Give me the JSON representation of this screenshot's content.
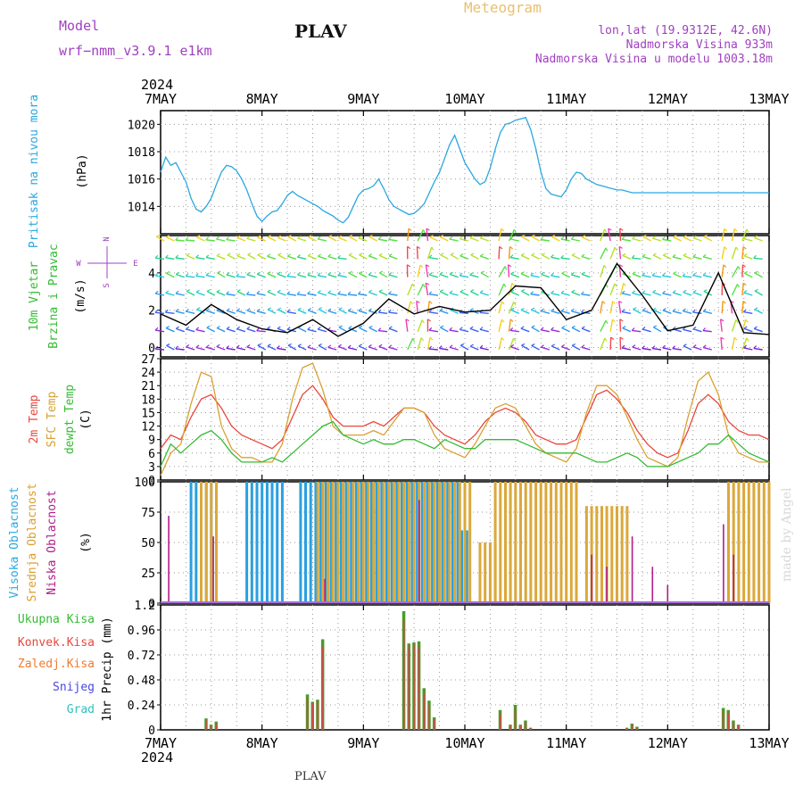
{
  "header": {
    "model_label": "Model",
    "model_name": "wrf−nmm_v3.9.1  e1km",
    "station_title": "PLAV",
    "product_title": "Meteogram",
    "coords": "lon,lat (19.9312E, 42.6N)",
    "elevation": "Nadmorska Visina 933m",
    "model_elevation": "Nadmorska Visina u modelu 1003.18m",
    "footer_station": "PLAV",
    "credit": "made by Angel"
  },
  "colors": {
    "pressure": "#29a8e0",
    "temp2m": "#e8473c",
    "sfc_temp": "#d9a032",
    "dewpt": "#33bb33",
    "cloud_high": "#2aa0e0",
    "cloud_mid": "#dba83a",
    "cloud_low": "#b01d8a",
    "precip_total": "#4c9a2a",
    "precip_conv": "#d24a4a",
    "model_purple": "#a040c0",
    "meteogram_gold": "#e8c070",
    "legend_snow": "#4848e0",
    "legend_hail": "#30c0c0",
    "legend_frozen": "#f07a30",
    "credit_color": "#d8d8d8"
  },
  "chart_data": [
    {
      "type": "line",
      "panel": "pressure",
      "ylabels": [
        "Pritisak na nivou mora",
        "(hPa)"
      ],
      "ylim": [
        1012,
        1021
      ],
      "yticks": [
        "1014",
        "1016",
        "1018",
        "1020"
      ],
      "grid": true,
      "x_days": [
        0,
        0.05,
        0.1,
        0.15,
        0.2,
        0.25,
        0.3,
        0.35,
        0.4,
        0.45,
        0.5,
        0.55,
        0.6,
        0.65,
        0.7,
        0.75,
        0.8,
        0.85,
        0.9,
        0.95,
        1.0,
        1.05,
        1.1,
        1.15,
        1.2,
        1.25,
        1.3,
        1.35,
        1.4,
        1.45,
        1.5,
        1.55,
        1.6,
        1.65,
        1.7,
        1.75,
        1.8,
        1.85,
        1.9,
        1.95,
        2.0,
        2.05,
        2.1,
        2.15,
        2.2,
        2.25,
        2.3,
        2.35,
        2.4,
        2.45,
        2.5,
        2.55,
        2.6,
        2.65,
        2.7,
        2.75,
        2.8,
        2.85,
        2.9,
        2.95,
        3.0,
        3.05,
        3.1,
        3.15,
        3.2,
        3.25,
        3.3,
        3.35,
        3.4,
        3.45,
        3.5,
        3.55,
        3.6,
        3.65,
        3.7,
        3.75,
        3.8,
        3.85,
        3.9,
        3.95,
        4.0,
        4.05,
        4.1,
        4.15,
        4.2,
        4.25,
        4.3,
        4.35,
        4.4,
        4.45,
        4.5,
        4.55,
        4.6,
        4.65,
        4.7,
        4.75,
        4.8,
        4.85,
        4.9,
        4.95,
        5.0,
        5.05,
        5.1,
        5.15,
        5.2,
        5.25,
        5.3,
        5.35,
        5.4,
        5.45,
        5.5,
        5.55,
        5.6,
        5.65,
        5.7,
        5.75,
        5.8,
        5.85,
        5.9,
        5.95,
        6.0
      ],
      "series": [
        {
          "color_key": "pressure",
          "values": [
            1016.5,
            1017.6,
            1017.0,
            1017.2,
            1016.5,
            1015.8,
            1014.6,
            1013.8,
            1013.6,
            1014.0,
            1014.6,
            1015.6,
            1016.5,
            1017.0,
            1016.9,
            1016.6,
            1016.0,
            1015.2,
            1014.2,
            1013.3,
            1012.9,
            1013.3,
            1013.6,
            1013.7,
            1014.2,
            1014.8,
            1015.1,
            1014.8,
            1014.6,
            1014.4,
            1014.2,
            1014.0,
            1013.7,
            1013.5,
            1013.3,
            1013.0,
            1012.8,
            1013.2,
            1014.0,
            1014.8,
            1015.2,
            1015.3,
            1015.5,
            1016.0,
            1015.3,
            1014.5,
            1014.0,
            1013.8,
            1013.6,
            1013.4,
            1013.5,
            1013.8,
            1014.2,
            1015.0,
            1015.8,
            1016.5,
            1017.5,
            1018.5,
            1019.2,
            1018.2,
            1017.2,
            1016.6,
            1016.0,
            1015.6,
            1015.8,
            1016.8,
            1018.2,
            1019.4,
            1020.0,
            1020.1,
            1020.3,
            1020.4,
            1020.5,
            1019.6,
            1018.2,
            1016.5,
            1015.3,
            1014.9,
            1014.8,
            1014.7,
            1015.2,
            1016.0,
            1016.5,
            1016.4,
            1016.0,
            1015.8,
            1015.6,
            1015.5,
            1015.4,
            1015.3,
            1015.2,
            1015.2,
            1015.1,
            1015.0,
            1015.0,
            1015.0,
            1015.0,
            1015.0,
            1015.0,
            1015.0,
            1015.0,
            1015.0,
            1015.0,
            1015.0,
            1015.0,
            1015.0,
            1015.0,
            1015.0,
            1015.0,
            1015.0,
            1015.0,
            1015.0,
            1015.0,
            1015.0,
            1015.0,
            1015.0,
            1015.0,
            1015.0,
            1015.0,
            1015.0,
            1015.0
          ]
        }
      ]
    },
    {
      "type": "line",
      "panel": "wind",
      "ylabels": [
        "10m Vjetar",
        "Brzina i Pravac",
        "(m/s)"
      ],
      "compass": [
        "N",
        "W",
        "E",
        "S"
      ],
      "ylim": [
        -0.5,
        6
      ],
      "yticks": [
        "0",
        "2",
        "4"
      ],
      "grid": true,
      "x_days": [
        0,
        0.25,
        0.5,
        0.75,
        1.0,
        1.25,
        1.5,
        1.75,
        2.0,
        2.25,
        2.5,
        2.75,
        3.0,
        3.25,
        3.5,
        3.75,
        4.0,
        4.25,
        4.5,
        4.75,
        5.0,
        5.25,
        5.5,
        5.75,
        6.0
      ],
      "series": [
        {
          "name": "speed",
          "values": [
            1.8,
            1.2,
            2.3,
            1.5,
            1.0,
            0.8,
            1.5,
            0.6,
            1.3,
            2.6,
            1.8,
            2.2,
            1.9,
            2.0,
            3.3,
            3.2,
            1.5,
            2.0,
            4.5,
            2.8,
            0.9,
            1.2,
            4.0,
            0.8,
            0.7
          ]
        }
      ]
    },
    {
      "type": "line",
      "panel": "temperature",
      "ylabels": [
        "2m Temp",
        "SFC Temp",
        "dewpt Temp",
        "(C)"
      ],
      "ylim": [
        0,
        27
      ],
      "yticks": [
        "0",
        "3",
        "6",
        "9",
        "12",
        "15",
        "18",
        "21",
        "24",
        "27"
      ],
      "grid": true,
      "x_days": [
        0,
        0.1,
        0.2,
        0.3,
        0.4,
        0.5,
        0.6,
        0.7,
        0.8,
        0.9,
        1.0,
        1.1,
        1.2,
        1.3,
        1.4,
        1.5,
        1.6,
        1.7,
        1.8,
        1.9,
        2.0,
        2.1,
        2.2,
        2.3,
        2.4,
        2.5,
        2.6,
        2.7,
        2.8,
        2.9,
        3.0,
        3.1,
        3.2,
        3.3,
        3.4,
        3.5,
        3.6,
        3.7,
        3.8,
        3.9,
        4.0,
        4.1,
        4.2,
        4.3,
        4.4,
        4.5,
        4.6,
        4.7,
        4.8,
        4.9,
        5.0,
        5.1,
        5.2,
        5.3,
        5.4,
        5.5,
        5.6,
        5.7,
        5.8,
        5.9,
        6.0
      ],
      "series": [
        {
          "color_key": "temp2m",
          "values": [
            7,
            10,
            9,
            14,
            18,
            19,
            16,
            12,
            10,
            9,
            8,
            7,
            9,
            14,
            19,
            21,
            18,
            14,
            12,
            12,
            12,
            13,
            12,
            14,
            16,
            16,
            15,
            12,
            10,
            9,
            8,
            10,
            13,
            15,
            16,
            15,
            13,
            10,
            9,
            8,
            8,
            9,
            14,
            19,
            20,
            18,
            15,
            11,
            8,
            6,
            5,
            6,
            11,
            17,
            19,
            17,
            13,
            11,
            10,
            10,
            9
          ]
        },
        {
          "color_key": "sfc_temp",
          "values": [
            1,
            6,
            8,
            17,
            24,
            23,
            12,
            7,
            5,
            5,
            4,
            4,
            8,
            18,
            25,
            26,
            20,
            12,
            10,
            10,
            10,
            11,
            10,
            13,
            16,
            16,
            15,
            10,
            7,
            6,
            5,
            8,
            12,
            16,
            17,
            16,
            12,
            8,
            6,
            5,
            4,
            7,
            15,
            21,
            21,
            19,
            14,
            9,
            5,
            4,
            3,
            5,
            14,
            22,
            24,
            19,
            10,
            6,
            5,
            4,
            4
          ]
        },
        {
          "color_key": "dewpt",
          "values": [
            3,
            8,
            6,
            8,
            10,
            11,
            9,
            6,
            4,
            4,
            4,
            5,
            4,
            6,
            8,
            10,
            12,
            13,
            10,
            9,
            8,
            9,
            8,
            8,
            9,
            9,
            8,
            7,
            9,
            8,
            7,
            7,
            9,
            9,
            9,
            9,
            8,
            7,
            6,
            6,
            6,
            6,
            5,
            4,
            4,
            5,
            6,
            5,
            3,
            3,
            3,
            4,
            5,
            6,
            8,
            8,
            10,
            8,
            6,
            5,
            4
          ]
        }
      ]
    },
    {
      "type": "bar",
      "panel": "cloud",
      "ylabels": [
        "Visoka Oblacnost",
        "Srednja Oblacnost",
        "Niska Oblacnost",
        "(%)"
      ],
      "ylim": [
        0,
        100
      ],
      "yticks": [
        "0",
        "25",
        "50",
        "75",
        "100"
      ],
      "grid": true,
      "series": [
        {
          "name": "Visoka Oblacnost",
          "color_key": "cloud_high",
          "bands": [
            [
              0.3,
              0.55,
              100
            ],
            [
              0.85,
              1.2,
              100
            ],
            [
              1.38,
              2.97,
              100
            ],
            [
              2.97,
              3.05,
              60
            ],
            [
              3.05,
              3.07,
              0
            ]
          ]
        },
        {
          "name": "Srednja Oblacnost",
          "color_key": "cloud_mid",
          "bands": [
            [
              0.4,
              0.55,
              100
            ],
            [
              1.55,
              3.05,
              100
            ],
            [
              3.15,
              3.3,
              50
            ],
            [
              3.3,
              4.1,
              100
            ],
            [
              4.2,
              4.6,
              80
            ],
            [
              5.6,
              6.0,
              100
            ]
          ]
        },
        {
          "name": "Niska Oblacnost",
          "color_key": "cloud_low",
          "spikes": [
            [
              0.08,
              72
            ],
            [
              0.52,
              55
            ],
            [
              1.62,
              20
            ],
            [
              2.55,
              85
            ],
            [
              4.25,
              40
            ],
            [
              4.4,
              30
            ],
            [
              4.65,
              55
            ],
            [
              4.85,
              30
            ],
            [
              5.0,
              15
            ],
            [
              5.55,
              65
            ],
            [
              5.65,
              40
            ]
          ]
        }
      ]
    },
    {
      "type": "bar",
      "panel": "precip",
      "ylabels": [
        "1hr Precip (mm)"
      ],
      "legend": [
        "Ukupna Kisa",
        "Konvek.Kisa",
        "Zaledj.Kisa",
        "Snijeg",
        "Grad"
      ],
      "ylim": [
        0,
        1.2
      ],
      "yticks": [
        "0",
        "0.24",
        "0.48",
        "0.72",
        "0.96",
        "1.2"
      ],
      "grid": true,
      "bars": [
        [
          0.45,
          0.11,
          0.09
        ],
        [
          0.5,
          0.05,
          0.04
        ],
        [
          0.55,
          0.08,
          0.06
        ],
        [
          1.45,
          0.34,
          0.3
        ],
        [
          1.5,
          0.27,
          0.25
        ],
        [
          1.55,
          0.29,
          0.27
        ],
        [
          1.6,
          0.87,
          0.8
        ],
        [
          2.4,
          1.14,
          1.05
        ],
        [
          2.45,
          0.83,
          0.8
        ],
        [
          2.5,
          0.84,
          0.82
        ],
        [
          2.55,
          0.85,
          0.8
        ],
        [
          2.6,
          0.4,
          0.35
        ],
        [
          2.65,
          0.28,
          0.24
        ],
        [
          2.7,
          0.12,
          0.1
        ],
        [
          3.35,
          0.19,
          0.15
        ],
        [
          3.45,
          0.05,
          0.04
        ],
        [
          3.5,
          0.24,
          0.2
        ],
        [
          3.55,
          0.05,
          0.04
        ],
        [
          3.6,
          0.09,
          0.07
        ],
        [
          3.65,
          0.02,
          0.02
        ],
        [
          4.6,
          0.02,
          0.02
        ],
        [
          4.65,
          0.06,
          0.05
        ],
        [
          4.7,
          0.03,
          0.02
        ],
        [
          5.55,
          0.21,
          0.18
        ],
        [
          5.6,
          0.19,
          0.16
        ],
        [
          5.65,
          0.09,
          0.07
        ],
        [
          5.7,
          0.05,
          0.04
        ]
      ]
    }
  ],
  "axis": {
    "year": "2024",
    "days": [
      "7MAY",
      "8MAY",
      "9MAY",
      "10MAY",
      "11MAY",
      "12MAY",
      "13MAY"
    ]
  }
}
